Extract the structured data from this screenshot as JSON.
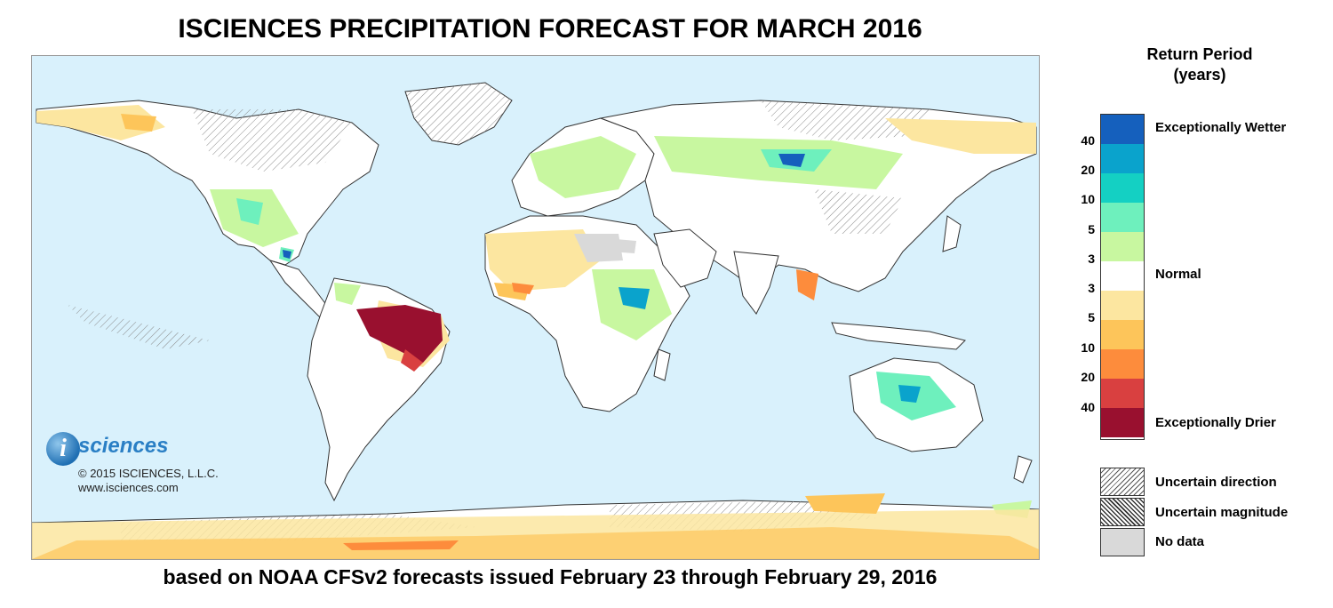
{
  "title": "ISCIENCES PRECIPITATION FORECAST FOR MARCH 2016",
  "subtitle": "based on NOAA CFSv2 forecasts issued February 23 through February 29, 2016",
  "logo": {
    "letter": "i",
    "word": "sciences"
  },
  "copyright": {
    "line1": "© 2015 ISCIENCES, L.L.C.",
    "line2": "www.isciences.com"
  },
  "legend": {
    "title_line1": "Return Period",
    "title_line2": "(years)",
    "colors": [
      "#1560bd",
      "#0aa3cc",
      "#14d0c3",
      "#6ef0bd",
      "#c8f7a0",
      "#ffffff",
      "#fce6a0",
      "#fdc55a",
      "#fd8c3c",
      "#d94040",
      "#99102f"
    ],
    "ticks": [
      "40",
      "20",
      "10",
      "5",
      "3",
      "3",
      "5",
      "10",
      "20",
      "40"
    ],
    "labels": {
      "wetter": "Exceptionally Wetter",
      "normal": "Normal",
      "drier": "Exceptionally Drier"
    },
    "patterns": [
      {
        "label": "Uncertain direction"
      },
      {
        "label": "Uncertain magnitude"
      },
      {
        "label": "No data"
      }
    ]
  }
}
